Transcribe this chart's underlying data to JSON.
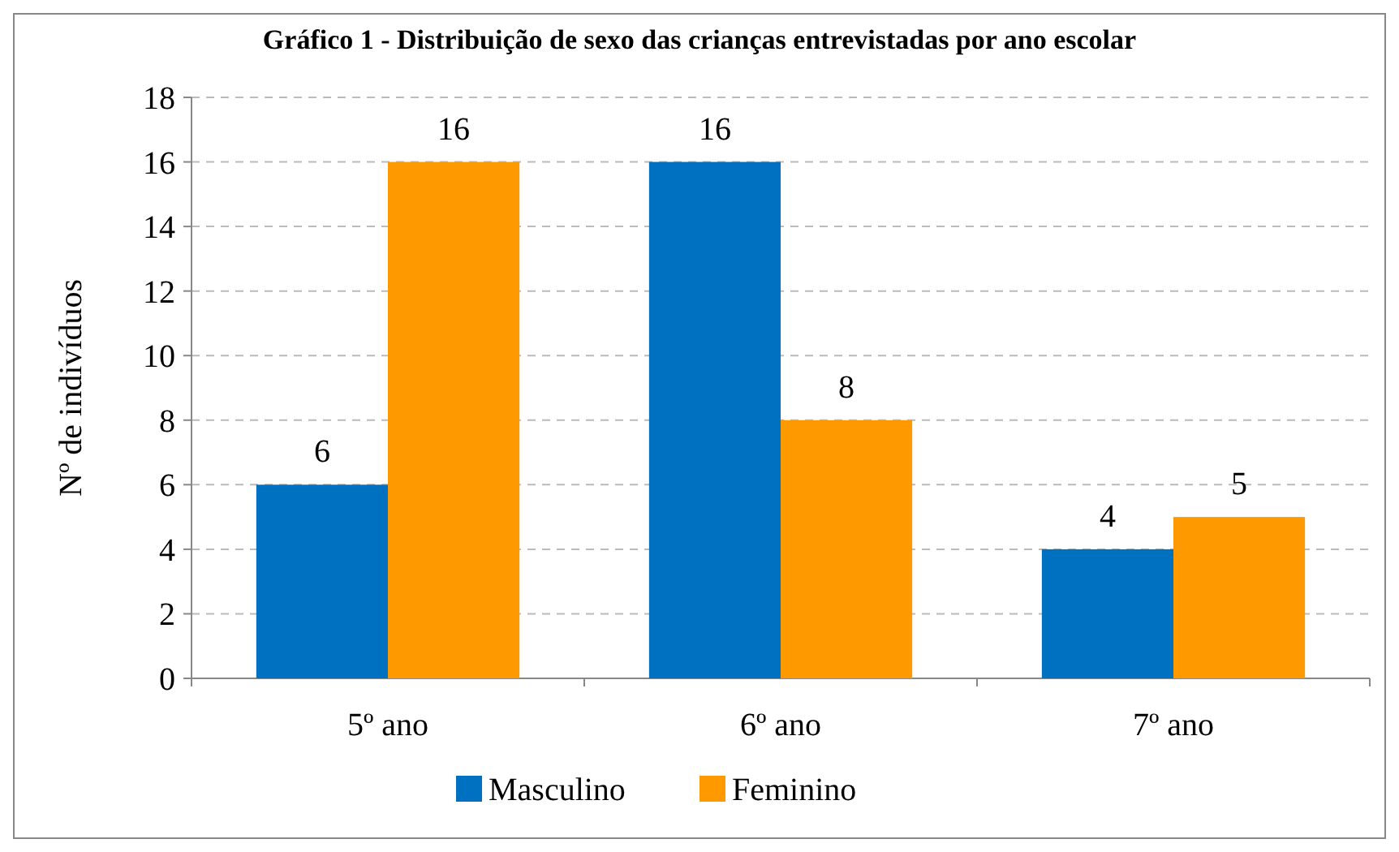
{
  "chart_data": {
    "type": "bar",
    "title": "Gráfico 1 - Distribuição de sexo das crianças entrevistadas por ano escolar",
    "ylabel": "Nº de indivíduos",
    "categories": [
      "5º ano",
      "6º ano",
      "7º ano"
    ],
    "series": [
      {
        "name": "Masculino",
        "color": "#0070c0",
        "values": [
          6,
          16,
          4
        ]
      },
      {
        "name": "Feminino",
        "color": "#ff9900",
        "values": [
          16,
          8,
          5
        ]
      }
    ],
    "ylim": [
      0,
      18
    ],
    "yticks": [
      0,
      2,
      4,
      6,
      8,
      10,
      12,
      14,
      16,
      18
    ],
    "grid": "y",
    "data_labels": true,
    "legend": "bottom"
  }
}
